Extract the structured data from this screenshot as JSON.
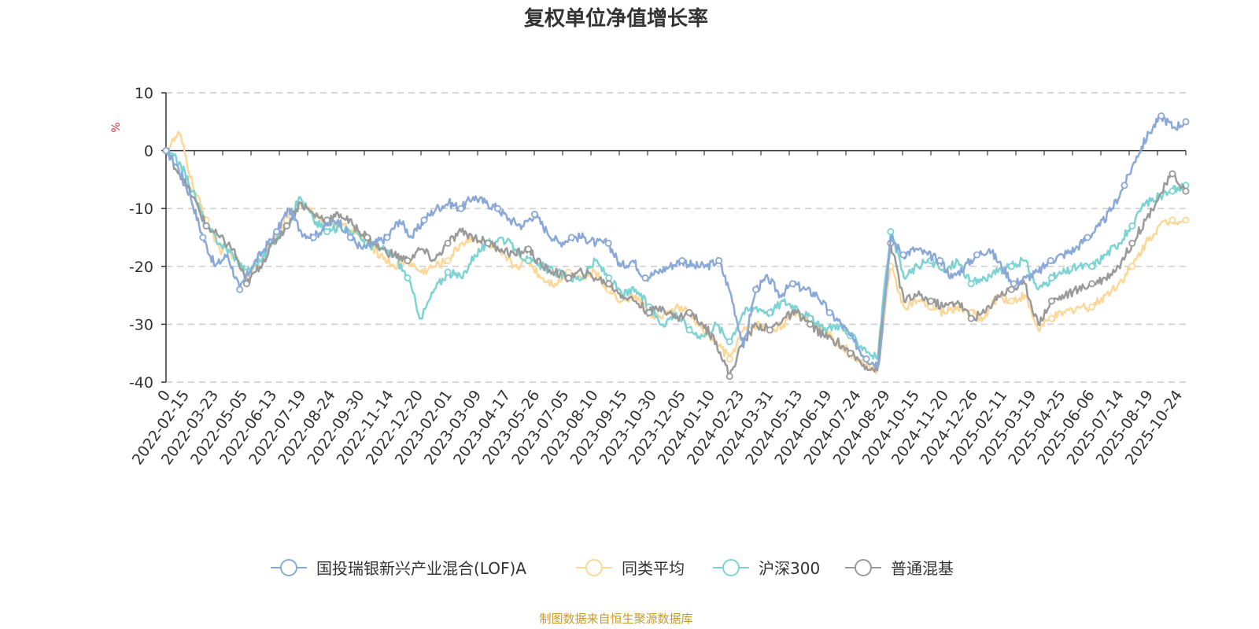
{
  "chart_data": {
    "type": "line",
    "title": "复权单位净值增长率",
    "ylabel": "%",
    "ylim": [
      -40,
      10
    ],
    "yticks": [
      "10",
      "0",
      "-10",
      "-20",
      "-30",
      "-40"
    ],
    "yticks_values": [
      10,
      0,
      -10,
      -20,
      -30,
      -40
    ],
    "x_origin_label": "0",
    "x_tick_labels": [
      "2022-02-15",
      "2022-03-23",
      "2022-05-05",
      "2022-06-13",
      "2022-07-19",
      "2022-08-24",
      "2022-09-30",
      "2022-11-14",
      "2022-12-20",
      "2023-02-01",
      "2023-03-09",
      "2023-04-17",
      "2023-05-26",
      "2023-07-05",
      "2023-08-10",
      "2023-09-15",
      "2023-10-30",
      "2023-12-05",
      "2024-01-10",
      "2024-02-23",
      "2024-03-31",
      "2024-05-13",
      "2024-06-19",
      "2024-07-24",
      "2024-08-29",
      "2024-10-15",
      "2024-11-20",
      "2024-12-26",
      "2025-02-11",
      "2025-03-19",
      "2025-04-25",
      "2025-06-06",
      "2025-07-14",
      "2025-08-19",
      "2025-10-24"
    ],
    "grid": true,
    "legend_position": "bottom",
    "source_note": "制图数据来自恒生聚源数据库",
    "series": [
      {
        "name": "国投瑞银新兴产业混合(LOF)A",
        "color": "#8aa8d8",
        "values": [
          0,
          -3,
          -8,
          -15,
          -20,
          -18,
          -24,
          -20,
          -17,
          -14,
          -10,
          -14,
          -15,
          -13,
          -12,
          -15,
          -17,
          -16,
          -15,
          -12,
          -15,
          -12,
          -10,
          -9,
          -10,
          -8,
          -9,
          -10,
          -12,
          -13,
          -11,
          -14,
          -16,
          -15,
          -15,
          -16,
          -16,
          -20,
          -19,
          -22,
          -21,
          -20,
          -19,
          -20,
          -20,
          -19,
          -25,
          -34,
          -24,
          -22,
          -25,
          -23,
          -24,
          -25,
          -28,
          -30,
          -33,
          -36,
          -37,
          -15,
          -18,
          -17,
          -18,
          -19,
          -22,
          -20,
          -18,
          -17,
          -20,
          -23,
          -22,
          -21,
          -19,
          -18,
          -17,
          -15,
          -13,
          -10,
          -6,
          -1,
          3,
          6,
          4,
          5
        ]
      },
      {
        "name": "同类平均",
        "color": "#fcd797",
        "values": [
          0,
          3,
          -6,
          -12,
          -17,
          -18,
          -22,
          -19,
          -15,
          -12,
          -9,
          -11,
          -12,
          -13,
          -14,
          -16,
          -18,
          -20,
          -19,
          -21,
          -20,
          -19,
          -16,
          -15,
          -16,
          -18,
          -20,
          -19,
          -22,
          -23,
          -21,
          -22,
          -21,
          -24,
          -26,
          -25,
          -28,
          -29,
          -27,
          -28,
          -31,
          -33,
          -36,
          -31,
          -30,
          -31,
          -30,
          -28,
          -29,
          -31,
          -33,
          -35,
          -37,
          -38,
          -20,
          -27,
          -26,
          -27,
          -28,
          -27,
          -28,
          -29,
          -25,
          -26,
          -25,
          -31,
          -29,
          -28,
          -27,
          -27,
          -25,
          -23,
          -20,
          -16,
          -13,
          -12,
          -12
        ]
      },
      {
        "name": "沪深300",
        "color": "#7dd3d3",
        "values": [
          0,
          -2,
          -7,
          -13,
          -16,
          -18,
          -21,
          -19,
          -16,
          -13,
          -8,
          -12,
          -14,
          -13,
          -14,
          -16,
          -17,
          -18,
          -22,
          -29,
          -24,
          -21,
          -22,
          -18,
          -16,
          -15,
          -17,
          -19,
          -20,
          -21,
          -22,
          -22,
          -19,
          -22,
          -25,
          -24,
          -27,
          -30,
          -28,
          -31,
          -32,
          -30,
          -33,
          -28,
          -27,
          -28,
          -26,
          -27,
          -29,
          -31,
          -30,
          -32,
          -34,
          -36,
          -14,
          -22,
          -20,
          -19,
          -21,
          -19,
          -23,
          -22,
          -21,
          -20,
          -19,
          -24,
          -22,
          -21,
          -20,
          -20,
          -18,
          -16,
          -13,
          -9,
          -8,
          -7,
          -6
        ]
      },
      {
        "name": "普通混基",
        "color": "#9a9a9a",
        "values": [
          0,
          -4,
          -8,
          -13,
          -15,
          -17,
          -23,
          -20,
          -16,
          -13,
          -9,
          -11,
          -12,
          -11,
          -13,
          -15,
          -17,
          -18,
          -19,
          -17,
          -19,
          -16,
          -14,
          -15,
          -16,
          -17,
          -18,
          -17,
          -20,
          -21,
          -22,
          -21,
          -22,
          -23,
          -25,
          -26,
          -28,
          -27,
          -29,
          -28,
          -30,
          -33,
          -39,
          -33,
          -30,
          -31,
          -29,
          -28,
          -30,
          -32,
          -33,
          -35,
          -37,
          -38,
          -16,
          -26,
          -25,
          -26,
          -27,
          -26,
          -29,
          -28,
          -25,
          -24,
          -23,
          -30,
          -26,
          -25,
          -24,
          -23,
          -22,
          -20,
          -16,
          -12,
          -8,
          -4,
          -7
        ]
      }
    ]
  }
}
